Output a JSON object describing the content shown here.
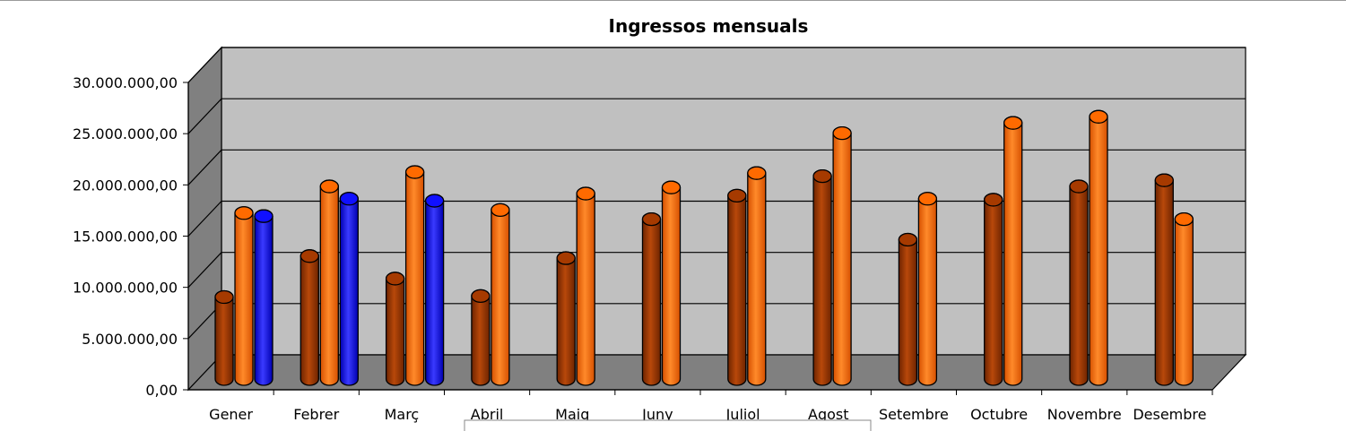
{
  "chart_data": {
    "type": "bar",
    "title": "Ingressos mensuals",
    "xlabel": "",
    "ylabel": "",
    "ylim": [
      0,
      30000000
    ],
    "yticks": [
      0,
      5000000,
      10000000,
      15000000,
      20000000,
      25000000,
      30000000
    ],
    "ytick_labels": [
      "0,00",
      "5.000.000,00",
      "10.000.000,00",
      "15.000.000,00",
      "20.000.000,00",
      "25.000.000,00",
      "30.000.000,00"
    ],
    "categories": [
      "Gener",
      "Febrer",
      "Març",
      "Abril",
      "Maig",
      "Juny",
      "Juliol",
      "Agost",
      "Setembre",
      "Octubre",
      "Novembre",
      "Desembre"
    ],
    "series": [
      {
        "color": "#a63a00",
        "values": [
          8000000,
          12000000,
          9800000,
          8100000,
          11800000,
          15600000,
          17900000,
          19800000,
          13600000,
          17500000,
          18800000,
          19400000
        ]
      },
      {
        "color": "#ff6a00",
        "values": [
          16200000,
          18800000,
          20200000,
          16500000,
          18100000,
          18700000,
          20100000,
          24000000,
          17600000,
          25000000,
          25600000,
          15600000
        ]
      },
      {
        "color": "#1010ff",
        "values": [
          15900000,
          17600000,
          17400000,
          null,
          null,
          null,
          null,
          null,
          null,
          null,
          null,
          null
        ]
      }
    ],
    "grid": true,
    "legend": "bottom"
  }
}
